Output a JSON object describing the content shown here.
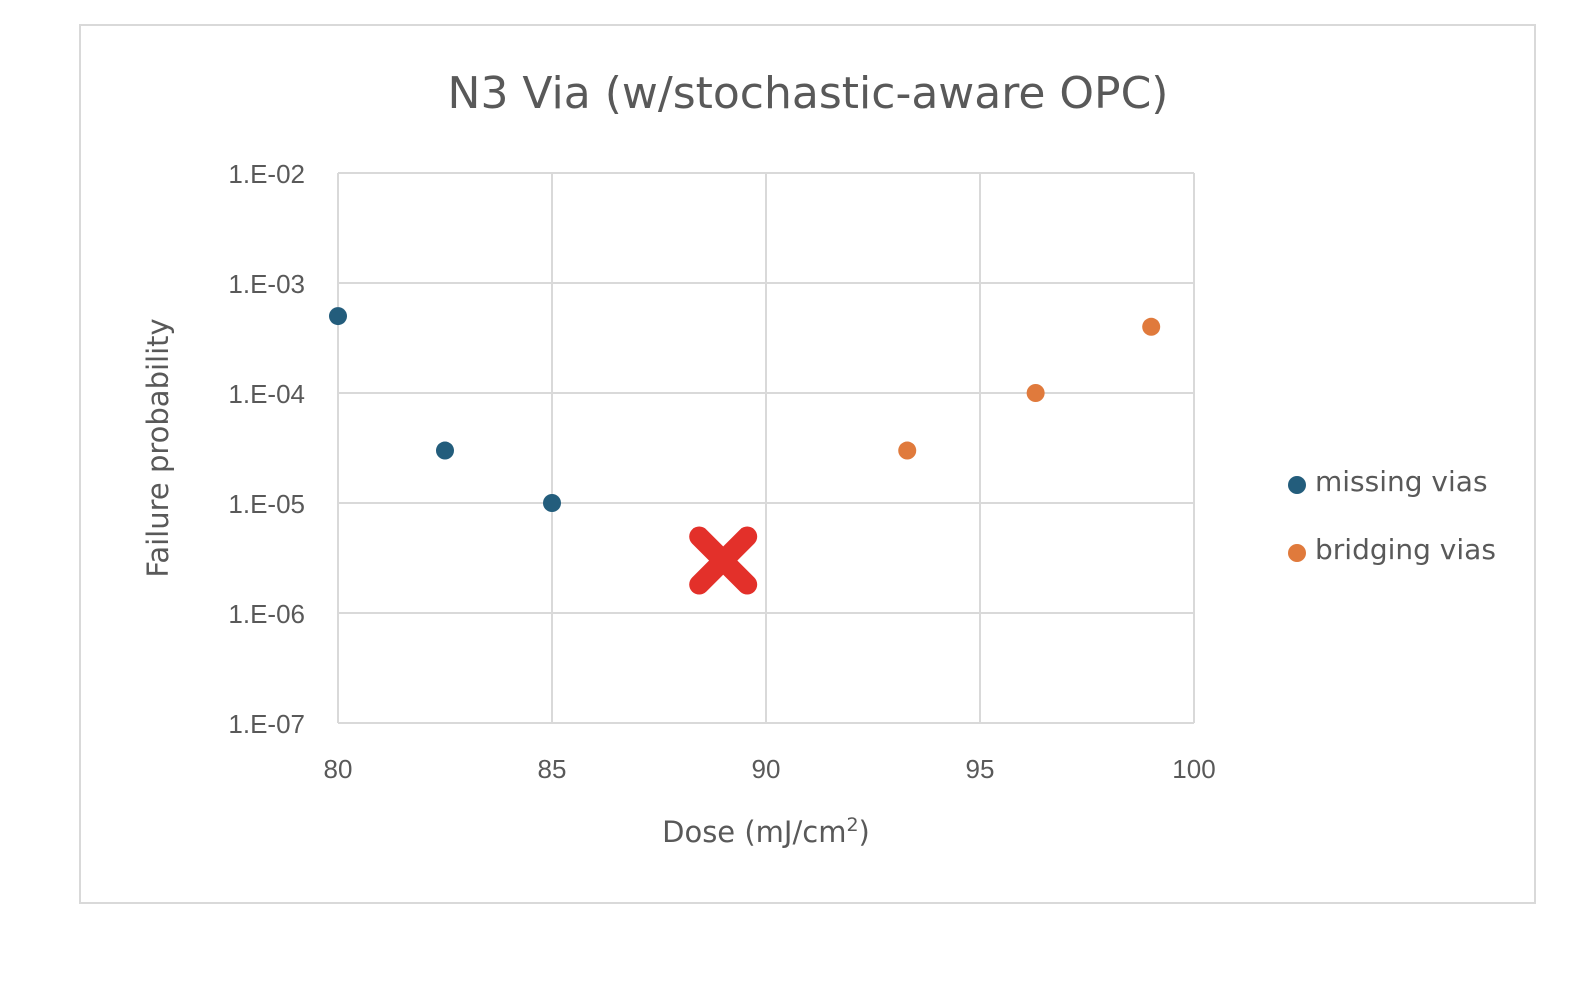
{
  "chart_data": {
    "type": "scatter",
    "title": "N3 Via (w/stochastic-aware OPC)",
    "xlabel": "Dose (mJ/cm",
    "xlabel_sup": "2",
    "xlabel_end": ")",
    "ylabel": "Failure probability",
    "xlim": [
      80,
      100
    ],
    "ylim": [
      1e-07,
      0.01
    ],
    "yscale": "log",
    "grid": true,
    "legend_position": "right",
    "x_ticks": [
      80,
      85,
      90,
      95,
      100
    ],
    "x_tick_labels": [
      "80",
      "85",
      "90",
      "95",
      "100"
    ],
    "y_ticks": [
      0.01,
      0.001,
      0.0001,
      1e-05,
      1e-06,
      1e-07
    ],
    "y_tick_labels": [
      "1.E-02",
      "1.E-03",
      "1.E-04",
      "1.E-05",
      "1.E-06",
      "1.E-07"
    ],
    "series": [
      {
        "name": "missing vias",
        "color": "#235d7c",
        "x": [
          80,
          82.5,
          85
        ],
        "y": [
          0.0005,
          3e-05,
          1e-05
        ]
      },
      {
        "name": "bridging vias",
        "color": "#e07a3c",
        "x": [
          93.3,
          96.3,
          99
        ],
        "y": [
          3e-05,
          0.0001,
          0.0004
        ]
      }
    ],
    "annotations": [
      {
        "type": "x-marker",
        "color": "#e3302a",
        "x": 89,
        "y": 3e-06
      }
    ]
  }
}
